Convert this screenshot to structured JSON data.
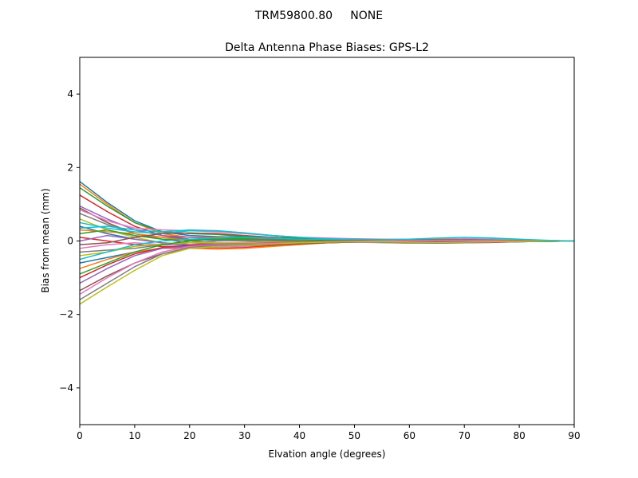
{
  "suptitle": "TRM59800.80     NONE",
  "chart_data": {
    "type": "line",
    "title": "Delta Antenna Phase Biases: GPS-L2",
    "xlabel": "Elvation angle (degrees)",
    "ylabel": "Bias from mean (mm)",
    "xlim": [
      0,
      90
    ],
    "ylim": [
      -5,
      5
    ],
    "xticks": [
      0,
      10,
      20,
      30,
      40,
      50,
      60,
      70,
      80,
      90
    ],
    "yticks": [
      -4,
      -2,
      0,
      2,
      4
    ],
    "ytick_labels": [
      "−4",
      "−2",
      "0",
      "2",
      "4"
    ],
    "grid": false,
    "colors": [
      "#1f77b4",
      "#ff7f0e",
      "#2ca02c",
      "#d62728",
      "#9467bd",
      "#8c564b",
      "#e377c2",
      "#7f7f7f",
      "#bcbd22",
      "#17becf"
    ],
    "x": [
      0,
      5,
      10,
      15,
      20,
      25,
      30,
      35,
      40,
      45,
      50,
      55,
      60,
      65,
      70,
      75,
      80,
      85,
      90
    ],
    "series": [
      {
        "values": [
          1.62,
          1.05,
          0.55,
          0.25,
          0.15,
          0.12,
          0.1,
          0.08,
          0.05,
          0.03,
          0.02,
          0,
          0.03,
          0.05,
          0.06,
          0.05,
          0.03,
          0.01,
          0
        ]
      },
      {
        "values": [
          1.55,
          1.0,
          0.5,
          0.2,
          0.1,
          0.1,
          0.08,
          0.05,
          0.03,
          0.02,
          0,
          -0.02,
          0,
          0.03,
          0.05,
          0.04,
          0.02,
          0.01,
          0
        ]
      },
      {
        "values": [
          1.45,
          0.95,
          0.5,
          0.25,
          0.2,
          0.18,
          0.12,
          0.08,
          0.05,
          0.03,
          0.02,
          0.02,
          0.04,
          0.06,
          0.05,
          0.04,
          0.02,
          0.01,
          0
        ]
      },
      {
        "values": [
          1.25,
          0.8,
          0.4,
          0.15,
          0.05,
          0.05,
          0.03,
          0.02,
          0.02,
          0.02,
          0.01,
          0,
          0.02,
          0.03,
          0.03,
          0.02,
          0.01,
          0,
          0
        ]
      },
      {
        "values": [
          0.95,
          0.6,
          0.3,
          0.15,
          0.1,
          0.08,
          0.06,
          0.05,
          0.05,
          0.06,
          0.05,
          0.03,
          0.02,
          0.02,
          0.03,
          0.03,
          0.02,
          0.01,
          0
        ]
      },
      {
        "values": [
          0.9,
          0.5,
          0.2,
          0.05,
          -0.05,
          -0.08,
          -0.08,
          -0.06,
          -0.04,
          -0.02,
          0,
          0.02,
          0.03,
          0.04,
          0.03,
          0.02,
          0.01,
          0,
          0
        ]
      },
      {
        "values": [
          0.85,
          0.55,
          0.35,
          0.3,
          0.28,
          0.25,
          0.2,
          0.15,
          0.1,
          0.08,
          0.06,
          0.05,
          0.05,
          0.06,
          0.06,
          0.05,
          0.03,
          0.01,
          0
        ]
      },
      {
        "values": [
          0.75,
          0.45,
          0.2,
          0.1,
          0.05,
          0.02,
          0,
          -0.02,
          -0.02,
          0,
          0.02,
          0.03,
          0.02,
          0.01,
          0,
          0,
          0,
          0,
          0
        ]
      },
      {
        "values": [
          0.6,
          0.3,
          0.1,
          -0.05,
          -0.1,
          -0.1,
          -0.08,
          -0.05,
          -0.03,
          -0.02,
          -0.03,
          -0.05,
          -0.06,
          -0.05,
          -0.03,
          -0.02,
          -0.01,
          0,
          0
        ]
      },
      {
        "values": [
          0.5,
          0.35,
          0.25,
          0.2,
          0.28,
          0.28,
          0.22,
          0.15,
          0.1,
          0.05,
          0.02,
          0,
          0,
          0.02,
          0.03,
          0.03,
          0.02,
          0.01,
          0
        ]
      },
      {
        "values": [
          0.4,
          0.2,
          0.05,
          -0.05,
          -0.12,
          -0.15,
          -0.12,
          -0.08,
          -0.05,
          -0.03,
          -0.02,
          -0.02,
          -0.04,
          -0.05,
          -0.04,
          -0.03,
          -0.02,
          -0.01,
          0
        ]
      },
      {
        "values": [
          0.3,
          0.25,
          0.2,
          0.1,
          0,
          -0.05,
          -0.05,
          -0.03,
          0,
          0.02,
          0.03,
          0.04,
          0.03,
          0.02,
          0.02,
          0.01,
          0,
          0,
          0
        ]
      },
      {
        "values": [
          0.2,
          0.3,
          0.15,
          0.05,
          0.02,
          0.05,
          0.08,
          0.1,
          0.08,
          0.05,
          0.03,
          0.02,
          0.01,
          0.02,
          0.02,
          0.01,
          0,
          0,
          0
        ]
      },
      {
        "values": [
          0.1,
          0.0,
          -0.1,
          -0.15,
          -0.18,
          -0.2,
          -0.18,
          -0.12,
          -0.08,
          -0.05,
          -0.03,
          -0.02,
          -0.03,
          -0.05,
          -0.05,
          -0.04,
          -0.02,
          -0.01,
          0
        ]
      },
      {
        "values": [
          0.0,
          0.15,
          0.05,
          -0.05,
          -0.1,
          -0.08,
          -0.05,
          -0.02,
          0,
          0.02,
          0.03,
          0.02,
          0,
          -0.02,
          -0.02,
          -0.01,
          0,
          0,
          0
        ]
      },
      {
        "values": [
          -0.1,
          -0.05,
          0.1,
          0.2,
          0.22,
          0.2,
          0.15,
          0.1,
          0.06,
          0.04,
          0.02,
          0.01,
          0.01,
          0.02,
          0.03,
          0.02,
          0.01,
          0,
          0
        ]
      },
      {
        "values": [
          -0.2,
          -0.1,
          -0.05,
          -0.1,
          -0.15,
          -0.18,
          -0.15,
          -0.1,
          -0.06,
          -0.04,
          -0.03,
          -0.04,
          -0.05,
          -0.06,
          -0.05,
          -0.03,
          -0.02,
          -0.01,
          0
        ]
      },
      {
        "values": [
          -0.3,
          -0.25,
          -0.2,
          -0.1,
          -0.05,
          0,
          0.02,
          0.03,
          0.04,
          0.05,
          0.05,
          0.04,
          0.03,
          0.02,
          0.02,
          0.01,
          0,
          0,
          0
        ]
      },
      {
        "values": [
          -0.4,
          -0.3,
          -0.15,
          -0.08,
          -0.05,
          -0.05,
          -0.04,
          -0.03,
          -0.02,
          0,
          0.02,
          0.03,
          0.04,
          0.05,
          0.04,
          0.03,
          0.02,
          0.01,
          0
        ]
      },
      {
        "values": [
          -0.5,
          -0.3,
          -0.1,
          0.0,
          0.05,
          0.08,
          0.1,
          0.08,
          0.05,
          0.03,
          0.02,
          0.02,
          0.03,
          0.04,
          0.04,
          0.03,
          0.01,
          0,
          0
        ]
      },
      {
        "values": [
          -0.6,
          -0.45,
          -0.3,
          -0.2,
          -0.15,
          -0.12,
          -0.1,
          -0.08,
          -0.05,
          -0.03,
          -0.02,
          -0.03,
          -0.04,
          -0.05,
          -0.04,
          -0.03,
          -0.02,
          -0.01,
          0
        ]
      },
      {
        "values": [
          -0.75,
          -0.5,
          -0.3,
          -0.2,
          -0.2,
          -0.22,
          -0.2,
          -0.15,
          -0.1,
          -0.05,
          -0.02,
          0,
          0.01,
          0.02,
          0.02,
          0.01,
          0,
          0,
          0
        ]
      },
      {
        "values": [
          -0.9,
          -0.6,
          -0.3,
          -0.1,
          0,
          0.05,
          0.05,
          0.03,
          0.02,
          0.01,
          0,
          -0.02,
          -0.04,
          -0.05,
          -0.04,
          -0.03,
          -0.02,
          -0.01,
          0
        ]
      },
      {
        "values": [
          -1.0,
          -0.65,
          -0.35,
          -0.18,
          -0.12,
          -0.1,
          -0.08,
          -0.05,
          -0.03,
          -0.01,
          0,
          0.01,
          0.02,
          0.03,
          0.03,
          0.02,
          0.01,
          0,
          0
        ]
      },
      {
        "values": [
          -1.15,
          -0.75,
          -0.4,
          -0.2,
          -0.15,
          -0.15,
          -0.12,
          -0.08,
          -0.05,
          -0.03,
          -0.02,
          -0.02,
          -0.03,
          -0.03,
          -0.03,
          -0.02,
          -0.01,
          0,
          0
        ]
      },
      {
        "values": [
          -1.35,
          -0.95,
          -0.6,
          -0.35,
          -0.2,
          -0.15,
          -0.12,
          -0.1,
          -0.08,
          -0.05,
          -0.03,
          -0.02,
          -0.02,
          -0.01,
          0,
          0,
          0,
          0,
          0
        ]
      },
      {
        "values": [
          -1.45,
          -1.0,
          -0.6,
          -0.3,
          -0.15,
          -0.1,
          -0.08,
          -0.06,
          -0.04,
          -0.02,
          -0.01,
          0,
          0.01,
          0.02,
          0.02,
          0.01,
          0,
          0,
          0
        ]
      },
      {
        "values": [
          -1.6,
          -1.15,
          -0.7,
          -0.35,
          -0.18,
          -0.12,
          -0.1,
          -0.08,
          -0.05,
          -0.03,
          -0.02,
          -0.03,
          -0.05,
          -0.06,
          -0.05,
          -0.03,
          -0.02,
          -0.01,
          0
        ]
      },
      {
        "values": [
          -1.72,
          -1.25,
          -0.8,
          -0.4,
          -0.2,
          -0.15,
          -0.12,
          -0.08,
          -0.05,
          -0.03,
          -0.02,
          -0.02,
          -0.03,
          -0.04,
          -0.03,
          -0.02,
          -0.01,
          0,
          0
        ]
      },
      {
        "values": [
          0.35,
          0.4,
          0.3,
          0.25,
          0.3,
          0.28,
          0.22,
          0.15,
          0.1,
          0.06,
          0.04,
          0.03,
          0.05,
          0.08,
          0.1,
          0.08,
          0.05,
          0.02,
          0
        ]
      }
    ]
  }
}
